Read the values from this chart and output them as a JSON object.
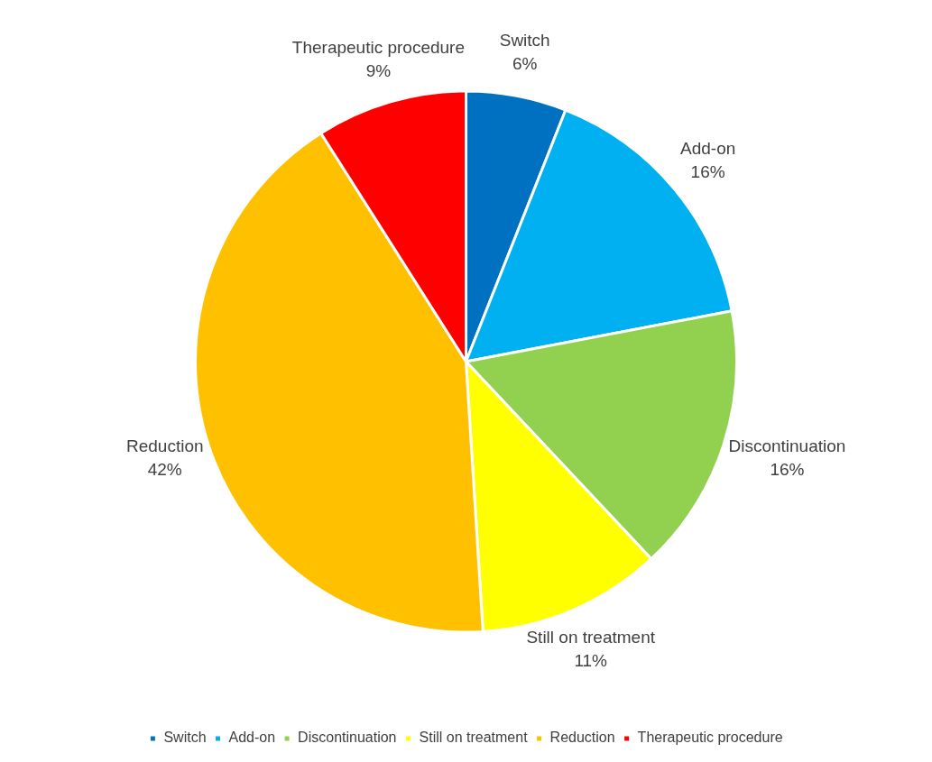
{
  "chart_data": {
    "type": "pie",
    "categories": [
      "Switch",
      "Add-on",
      "Discontinuation",
      "Still on treatment",
      "Reduction",
      "Therapeutic procedure"
    ],
    "values": [
      6,
      16,
      16,
      11,
      42,
      9
    ],
    "value_labels": [
      "6%",
      "16%",
      "16%",
      "11%",
      "42%",
      "9%"
    ],
    "colors": [
      "#0070c0",
      "#00b0f0",
      "#92d050",
      "#ffff00",
      "#ffc000",
      "#ff0000"
    ],
    "legend": "bottom"
  }
}
